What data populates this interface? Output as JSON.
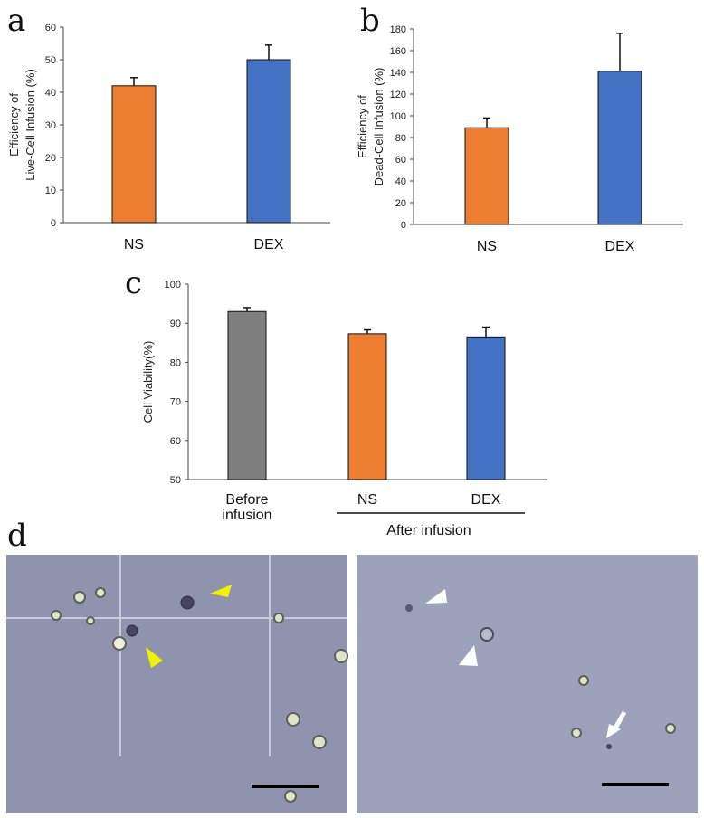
{
  "panels": {
    "a": "a",
    "b": "b",
    "c": "c",
    "d": "d"
  },
  "colors": {
    "orange": "#ED7D31",
    "blue": "#4472C4",
    "gray": "#7F7F7F"
  },
  "chart_data": [
    {
      "id": "a",
      "type": "bar",
      "categories": [
        "NS",
        "DEX"
      ],
      "values": [
        42,
        50
      ],
      "errors": [
        2.5,
        4.5
      ],
      "colors": [
        "#ED7D31",
        "#4472C4"
      ],
      "ylabel_lines": [
        "Efficiency of",
        "Live-Cell Infusion (%)"
      ],
      "ylim": [
        0,
        60
      ],
      "yticks": [
        0,
        10,
        20,
        30,
        40,
        50,
        60
      ]
    },
    {
      "id": "b",
      "type": "bar",
      "categories": [
        "NS",
        "DEX"
      ],
      "values": [
        89,
        141
      ],
      "errors": [
        9,
        35
      ],
      "colors": [
        "#ED7D31",
        "#4472C4"
      ],
      "ylabel_lines": [
        "Efficiency of",
        "Dead-Cell Infusion (%)"
      ],
      "ylim": [
        0,
        180
      ],
      "yticks": [
        0,
        20,
        40,
        60,
        80,
        100,
        120,
        140,
        160,
        180
      ]
    },
    {
      "id": "c",
      "type": "bar",
      "categories": [
        "Before infusion",
        "NS",
        "DEX"
      ],
      "category_lines": [
        [
          "Before",
          "infusion"
        ],
        [
          "NS"
        ],
        [
          "DEX"
        ]
      ],
      "values": [
        93,
        87.3,
        86.5
      ],
      "errors": [
        1,
        1,
        2.5
      ],
      "colors": [
        "#7F7F7F",
        "#ED7D31",
        "#4472C4"
      ],
      "ylabel_lines": [
        "Cell Viability(%)"
      ],
      "ylim": [
        50,
        100
      ],
      "yticks": [
        50,
        60,
        70,
        80,
        90,
        100
      ],
      "group_label": "After infusion"
    }
  ]
}
